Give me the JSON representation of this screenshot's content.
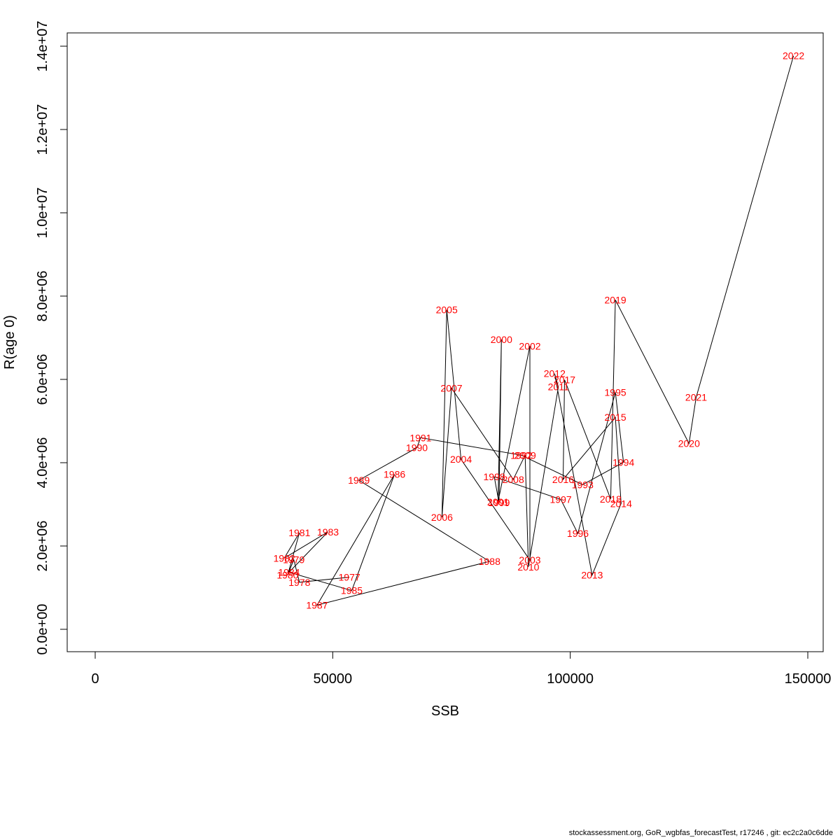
{
  "footer": "stockassessment.org, GoR_wgbfas_forecastTest, r17246 , git: ec2c2a0c6dde",
  "chart_data": {
    "type": "line",
    "xlabel": "SSB",
    "ylabel": "R(age 0)",
    "xlim": [
      0,
      150000
    ],
    "ylim": [
      0,
      14000000
    ],
    "xticks": [
      0,
      50000,
      100000,
      150000
    ],
    "xtick_labels": [
      "0",
      "50000",
      "100000",
      "150000"
    ],
    "yticks": [
      0,
      2000000,
      4000000,
      6000000,
      8000000,
      10000000,
      12000000,
      14000000
    ],
    "ytick_labels": [
      "0.0e+00",
      "2.0e+06",
      "4.0e+06",
      "6.0e+06",
      "8.0e+06",
      "1.0e+07",
      "1.2e+07",
      "1.4e+07"
    ],
    "grid": false,
    "line_color": "#000000",
    "label_color": "#ff0000",
    "points": [
      {
        "year": "1977",
        "x": 53500,
        "y": 1250000
      },
      {
        "year": "1978",
        "x": 43000,
        "y": 1130000
      },
      {
        "year": "1979",
        "x": 41800,
        "y": 1670000
      },
      {
        "year": "1980",
        "x": 40500,
        "y": 1300000
      },
      {
        "year": "1981",
        "x": 43000,
        "y": 2320000
      },
      {
        "year": "1982",
        "x": 39800,
        "y": 1710000
      },
      {
        "year": "1983",
        "x": 49000,
        "y": 2340000
      },
      {
        "year": "1984",
        "x": 40800,
        "y": 1370000
      },
      {
        "year": "1985",
        "x": 54000,
        "y": 930000
      },
      {
        "year": "1986",
        "x": 63000,
        "y": 3720000
      },
      {
        "year": "1987",
        "x": 46700,
        "y": 580000
      },
      {
        "year": "1988",
        "x": 83000,
        "y": 1630000
      },
      {
        "year": "1989",
        "x": 55500,
        "y": 3580000
      },
      {
        "year": "1990",
        "x": 67700,
        "y": 4360000
      },
      {
        "year": "1991",
        "x": 68500,
        "y": 4600000
      },
      {
        "year": "1992",
        "x": 89700,
        "y": 4180000
      },
      {
        "year": "1993",
        "x": 102600,
        "y": 3470000
      },
      {
        "year": "1994",
        "x": 111200,
        "y": 4010000
      },
      {
        "year": "1995",
        "x": 109500,
        "y": 5690000
      },
      {
        "year": "1996",
        "x": 101600,
        "y": 2300000
      },
      {
        "year": "1997",
        "x": 98000,
        "y": 3120000
      },
      {
        "year": "1998",
        "x": 84000,
        "y": 3660000
      },
      {
        "year": "1999",
        "x": 85000,
        "y": 3040000
      },
      {
        "year": "2000",
        "x": 85500,
        "y": 6960000
      },
      {
        "year": "2001",
        "x": 84800,
        "y": 3060000
      },
      {
        "year": "2002",
        "x": 91500,
        "y": 6800000
      },
      {
        "year": "2003",
        "x": 91500,
        "y": 1660000
      },
      {
        "year": "2004",
        "x": 77000,
        "y": 4080000
      },
      {
        "year": "2005",
        "x": 74000,
        "y": 7670000
      },
      {
        "year": "2006",
        "x": 73000,
        "y": 2690000
      },
      {
        "year": "2007",
        "x": 75000,
        "y": 5790000
      },
      {
        "year": "2008",
        "x": 88000,
        "y": 3600000
      },
      {
        "year": "2009",
        "x": 90500,
        "y": 4180000
      },
      {
        "year": "2010",
        "x": 91200,
        "y": 1500000
      },
      {
        "year": "2011",
        "x": 97500,
        "y": 5820000
      },
      {
        "year": "2012",
        "x": 96700,
        "y": 6140000
      },
      {
        "year": "2013",
        "x": 104600,
        "y": 1300000
      },
      {
        "year": "2014",
        "x": 110700,
        "y": 3020000
      },
      {
        "year": "2015",
        "x": 109500,
        "y": 5090000
      },
      {
        "year": "2016",
        "x": 98500,
        "y": 3600000
      },
      {
        "year": "2017",
        "x": 98800,
        "y": 5990000
      },
      {
        "year": "2018",
        "x": 108500,
        "y": 3130000
      },
      {
        "year": "2019",
        "x": 109500,
        "y": 7910000
      },
      {
        "year": "2020",
        "x": 125000,
        "y": 4460000
      },
      {
        "year": "2021",
        "x": 126500,
        "y": 5570000
      },
      {
        "year": "2022",
        "x": 147000,
        "y": 13770000
      }
    ]
  }
}
